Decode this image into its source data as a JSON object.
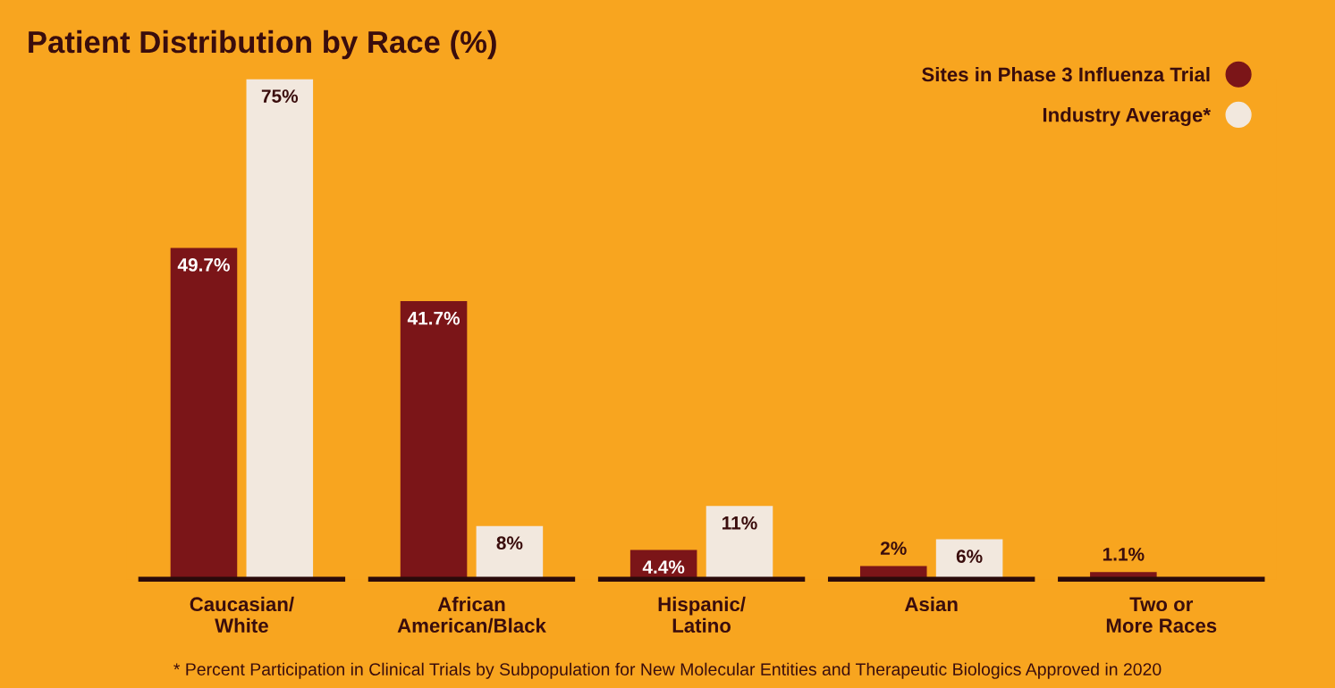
{
  "chart_data": {
    "type": "bar",
    "title": "Patient Distribution by Race (%)",
    "categories": [
      "Caucasian/\nWhite",
      "African\nAmerican/Black",
      "Hispanic/\nLatino",
      "Asian",
      "Two or\nMore Races"
    ],
    "series": [
      {
        "name": "Sites in Phase 3 Influenza Trial",
        "color": "#7b1518",
        "values": [
          49.7,
          41.7,
          4.4,
          2,
          1.1
        ],
        "value_labels": [
          "49.7%",
          "41.7%",
          "4.4%",
          "2%",
          "1.1%"
        ]
      },
      {
        "name": "Industry Average*",
        "color": "#f2e8de",
        "values": [
          75,
          8,
          11,
          6,
          null
        ],
        "value_labels": [
          "75%",
          "8%",
          "11%",
          "6%",
          null
        ]
      }
    ],
    "legend": "top right",
    "grid": false,
    "annotations": [
      "* Percent Participation in Clinical Trials by Subpopulation for New Molecular Entities and Therapeutic Biologics Approved in 2020"
    ]
  }
}
